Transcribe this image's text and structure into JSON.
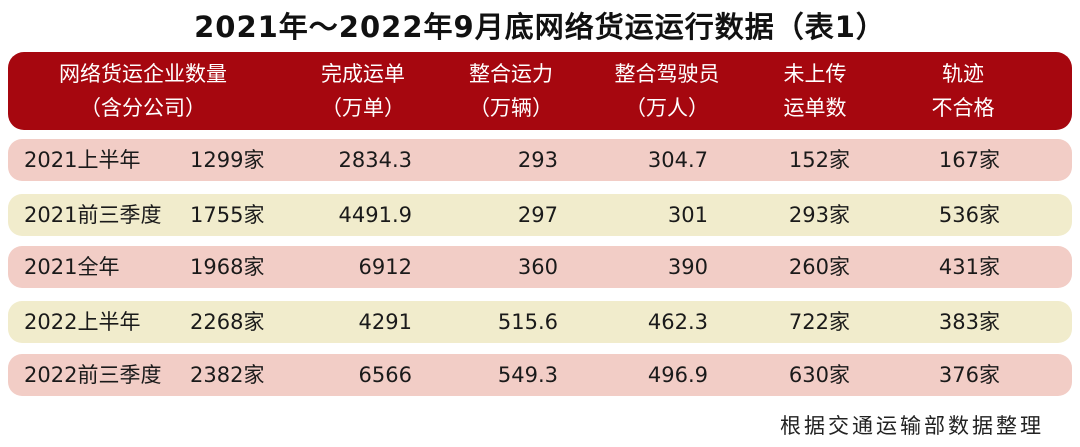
{
  "title": "2021年～2022年9月底网络货运运行数据（表1）",
  "headers": [
    {
      "line1": "网络货运企业数量",
      "line2": "（含分公司）"
    },
    {
      "line1": "完成运单",
      "line2": "（万单）"
    },
    {
      "line1": "整合运力",
      "line2": "（万辆）"
    },
    {
      "line1": "整合驾驶员",
      "line2": "（万人）"
    },
    {
      "line1": "未上传",
      "line2": "运单数"
    },
    {
      "line1": "轨迹",
      "line2": "不合格"
    }
  ],
  "rows": [
    {
      "period": "2021上半年",
      "enterprises": "1299家",
      "orders": "2834.3",
      "capacity": "293",
      "drivers": "304.7",
      "not_uploaded": "152家",
      "trajectory": "167家"
    },
    {
      "period": "2021前三季度",
      "enterprises": "1755家",
      "orders": "4491.9",
      "capacity": "297",
      "drivers": "301",
      "not_uploaded": "293家",
      "trajectory": "536家"
    },
    {
      "period": "2021全年",
      "enterprises": "1968家",
      "orders": "6912",
      "capacity": "360",
      "drivers": "390",
      "not_uploaded": "260家",
      "trajectory": "431家"
    },
    {
      "period": "2022上半年",
      "enterprises": "2268家",
      "orders": "4291",
      "capacity": "515.6",
      "drivers": "462.3",
      "not_uploaded": "722家",
      "trajectory": "383家"
    },
    {
      "period": "2022前三季度",
      "enterprises": "2382家",
      "orders": "6566",
      "capacity": "549.3",
      "drivers": "496.9",
      "not_uploaded": "630家",
      "trajectory": "376家"
    }
  ],
  "source": "根据交通运输部数据整理",
  "colors": {
    "header_bg": "#a6070f",
    "row_pink": "#f2cdc6",
    "row_yellow": "#f1eccc"
  },
  "chart_data": {
    "type": "table",
    "title": "2021年～2022年9月底网络货运运行数据（表1）",
    "columns": [
      "",
      "网络货运企业数量（含分公司）",
      "完成运单（万单）",
      "整合运力（万辆）",
      "整合驾驶员（万人）",
      "未上传运单数",
      "轨迹不合格"
    ],
    "rows": [
      [
        "2021上半年",
        "1299家",
        2834.3,
        293,
        304.7,
        "152家",
        "167家"
      ],
      [
        "2021前三季度",
        "1755家",
        4491.9,
        297,
        301,
        "293家",
        "536家"
      ],
      [
        "2021全年",
        "1968家",
        6912,
        360,
        390,
        "260家",
        "431家"
      ],
      [
        "2022上半年",
        "2268家",
        4291,
        515.6,
        462.3,
        "722家",
        "383家"
      ],
      [
        "2022前三季度",
        "2382家",
        6566,
        549.3,
        496.9,
        "630家",
        "376家"
      ]
    ]
  }
}
